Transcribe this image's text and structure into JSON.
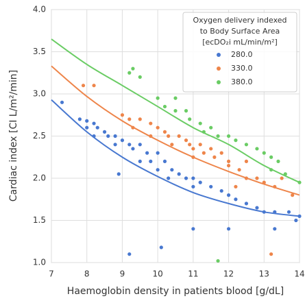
{
  "chart_data": {
    "type": "scatter",
    "x_label": "Haemoglobin density in patients blood [g/dL]",
    "y_label": "Cardiac index [CI L/m²/min]",
    "legend_title": [
      "Oxygen delivery indexed",
      "to Body Surface Area",
      "[ecDO₂i mL/min/m²]"
    ],
    "legend_position": "upper right",
    "grid": true,
    "xlim": [
      7,
      14
    ],
    "ylim": [
      1.0,
      4.0
    ],
    "xticks": [
      7,
      8,
      9,
      10,
      11,
      12,
      13,
      14
    ],
    "yticks": [
      {
        "value": 1,
        "label": "1.0"
      },
      1.5,
      {
        "value": 2,
        "label": "2.0"
      },
      2.5,
      {
        "value": 3,
        "label": "3.0"
      },
      3.5,
      {
        "value": 4,
        "label": "4.0"
      }
    ],
    "series": [
      {
        "name": "280.0",
        "color": "#4878d0",
        "x": [
          7.3,
          7.8,
          8,
          8.2,
          8,
          8.3,
          8.5,
          8.2,
          8.6,
          8.8,
          9,
          8.8,
          9.2,
          9.5,
          9.3,
          9.7,
          10,
          9.5,
          9.8,
          10.2,
          10,
          10.4,
          10.6,
          10.3,
          10.8,
          11,
          11.2,
          11,
          11.5,
          11.8,
          12,
          12.2,
          12.5,
          12.8,
          13,
          13.3,
          13.7,
          14,
          9.2,
          10.1,
          11,
          12,
          13.3,
          8.9,
          13.9
        ],
        "values": [
          2.9,
          2.7,
          2.68,
          2.65,
          2.6,
          2.6,
          2.55,
          2.5,
          2.5,
          2.5,
          2.45,
          2.4,
          2.4,
          2.4,
          2.35,
          2.3,
          2.3,
          2.2,
          2.2,
          2.2,
          2.1,
          2.1,
          2.05,
          2.0,
          2.0,
          2.0,
          1.95,
          1.9,
          1.9,
          1.85,
          1.8,
          1.75,
          1.7,
          1.65,
          1.6,
          1.6,
          1.6,
          1.55,
          1.1,
          1.18,
          1.4,
          1.4,
          1.4,
          2.05,
          1.5
        ],
        "curve": {
          "x": [
            7,
            8,
            9,
            10,
            11,
            12,
            13,
            14
          ],
          "y": [
            2.93,
            2.55,
            2.25,
            2.02,
            1.83,
            1.7,
            1.6,
            1.55
          ]
        }
      },
      {
        "name": "330.0",
        "color": "#ee854a",
        "x": [
          7.9,
          8.2,
          9,
          9.2,
          9.5,
          9.8,
          9.3,
          10,
          10.2,
          9.8,
          10.3,
          10.6,
          10.8,
          10.4,
          10.9,
          11.2,
          11,
          11.5,
          11.3,
          11.8,
          11,
          11.6,
          12,
          12,
          12.3,
          12.5,
          12.8,
          13,
          13.3,
          13.5,
          12.5,
          13.2,
          13.8,
          12.2
        ],
        "values": [
          3.1,
          3.1,
          2.75,
          2.7,
          2.7,
          2.65,
          2.6,
          2.6,
          2.55,
          2.5,
          2.5,
          2.5,
          2.45,
          2.4,
          2.4,
          2.4,
          2.35,
          2.35,
          2.3,
          2.3,
          2.25,
          2.25,
          2.2,
          2.15,
          2.1,
          2.0,
          2.0,
          1.95,
          1.9,
          2.0,
          2.2,
          1.1,
          1.8,
          1.9
        ],
        "curve": {
          "x": [
            7,
            8,
            9,
            10,
            11,
            12,
            13,
            14
          ],
          "y": [
            3.33,
            2.97,
            2.68,
            2.45,
            2.25,
            2.08,
            1.93,
            1.8
          ]
        }
      },
      {
        "name": "380.0",
        "color": "#6acc64",
        "x": [
          9.3,
          9.2,
          9.5,
          10,
          10.2,
          10.5,
          10.8,
          10.9,
          11.2,
          11.5,
          11.3,
          11.7,
          12,
          12.2,
          12.5,
          12.8,
          13,
          13.2,
          13.4,
          13.2,
          13.6,
          14,
          11.7,
          10.5
        ],
        "values": [
          3.3,
          3.25,
          3.2,
          2.95,
          2.85,
          2.8,
          2.8,
          2.7,
          2.65,
          2.6,
          2.55,
          2.5,
          2.5,
          2.45,
          2.4,
          2.35,
          2.3,
          2.25,
          2.2,
          2.1,
          2.05,
          1.95,
          1.02,
          2.95
        ],
        "curve": {
          "x": [
            7,
            8,
            9,
            10,
            11,
            12,
            13,
            14
          ],
          "y": [
            3.65,
            3.35,
            3.1,
            2.85,
            2.6,
            2.4,
            2.15,
            1.95
          ]
        }
      }
    ]
  }
}
